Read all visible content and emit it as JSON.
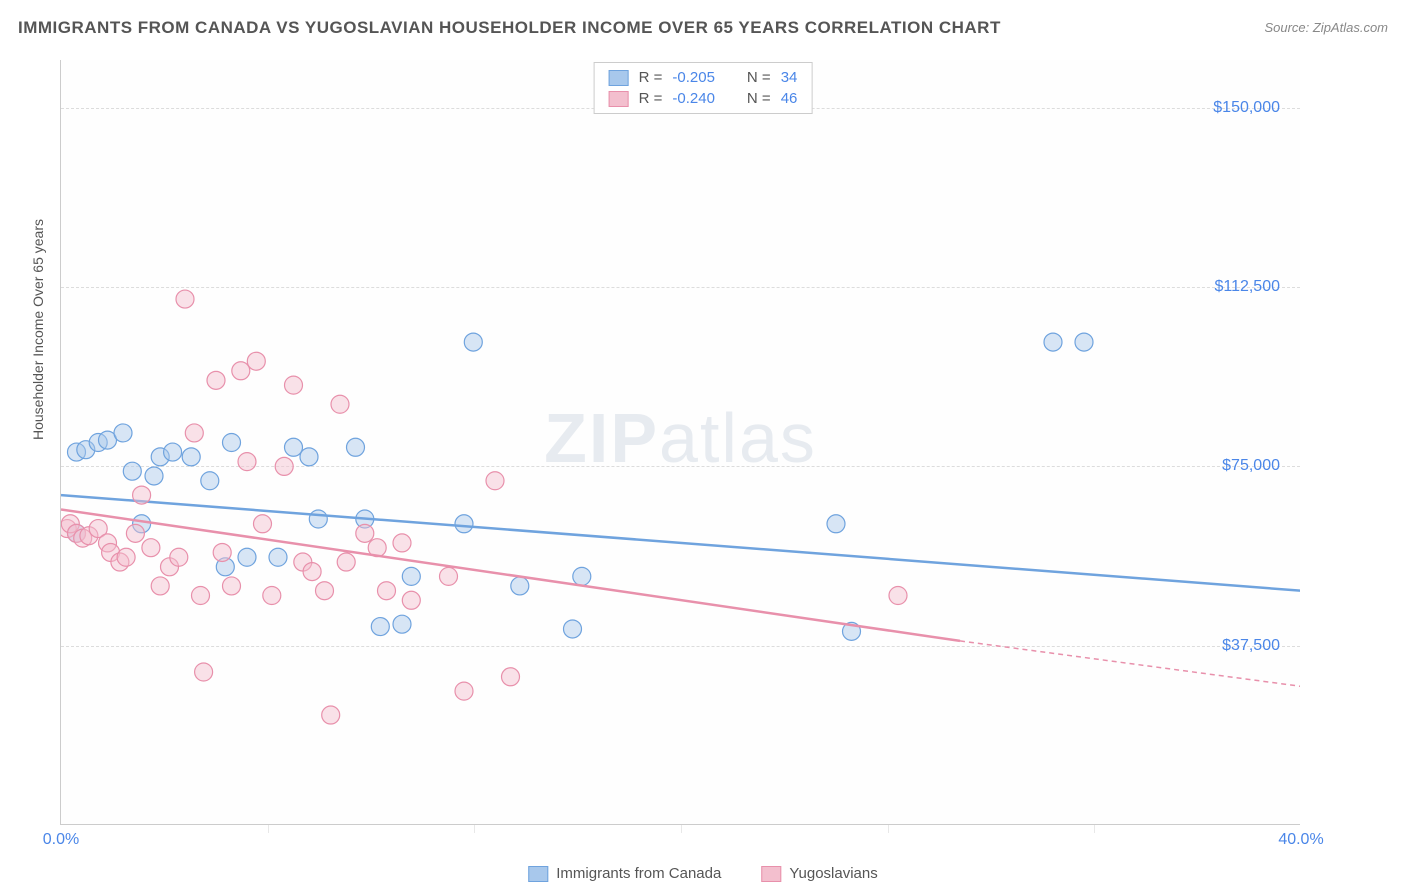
{
  "title": "IMMIGRANTS FROM CANADA VS YUGOSLAVIAN HOUSEHOLDER INCOME OVER 65 YEARS CORRELATION CHART",
  "source": "Source: ZipAtlas.com",
  "y_axis_label": "Householder Income Over 65 years",
  "watermark": "ZIPatlas",
  "chart": {
    "type": "scatter",
    "xlim": [
      0,
      40
    ],
    "ylim": [
      0,
      160000
    ],
    "x_ticks": [
      0,
      40
    ],
    "x_tick_labels": [
      "0.0%",
      "40.0%"
    ],
    "x_minor_ticks": [
      6.67,
      13.33,
      20,
      26.67,
      33.33
    ],
    "y_ticks": [
      37500,
      75000,
      112500,
      150000
    ],
    "y_tick_labels": [
      "$37,500",
      "$75,000",
      "$112,500",
      "$150,000"
    ],
    "background_color": "#ffffff",
    "grid_color": "#dcdcdc",
    "series": [
      {
        "name": "Immigrants from Canada",
        "color_fill": "#a8c8ec",
        "color_stroke": "#6fa3de",
        "r": -0.205,
        "n": 34,
        "points": [
          [
            0.5,
            61000
          ],
          [
            0.5,
            78000
          ],
          [
            0.8,
            78500
          ],
          [
            1.2,
            80000
          ],
          [
            1.5,
            80500
          ],
          [
            2.0,
            82000
          ],
          [
            2.3,
            74000
          ],
          [
            2.6,
            63000
          ],
          [
            3.0,
            73000
          ],
          [
            3.2,
            77000
          ],
          [
            3.6,
            78000
          ],
          [
            4.2,
            77000
          ],
          [
            4.8,
            72000
          ],
          [
            5.3,
            54000
          ],
          [
            5.5,
            80000
          ],
          [
            6.0,
            56000
          ],
          [
            7.0,
            56000
          ],
          [
            7.5,
            79000
          ],
          [
            8.0,
            77000
          ],
          [
            8.3,
            64000
          ],
          [
            9.5,
            79000
          ],
          [
            9.8,
            64000
          ],
          [
            10.3,
            41500
          ],
          [
            11.0,
            42000
          ],
          [
            11.3,
            52000
          ],
          [
            13.0,
            63000
          ],
          [
            13.3,
            101000
          ],
          [
            14.8,
            50000
          ],
          [
            16.5,
            41000
          ],
          [
            16.8,
            52000
          ],
          [
            25.0,
            63000
          ],
          [
            25.5,
            40500
          ],
          [
            32.0,
            101000
          ],
          [
            33.0,
            101000
          ]
        ],
        "trend": {
          "x1": 0,
          "y1": 69000,
          "x2": 40,
          "y2": 49000,
          "extrapolate_from": 40
        }
      },
      {
        "name": "Yugoslavians",
        "color_fill": "#f3bfce",
        "color_stroke": "#e890ab",
        "r": -0.24,
        "n": 46,
        "points": [
          [
            0.2,
            62000
          ],
          [
            0.3,
            63000
          ],
          [
            0.5,
            61000
          ],
          [
            0.7,
            60000
          ],
          [
            0.9,
            60500
          ],
          [
            1.2,
            62000
          ],
          [
            1.5,
            59000
          ],
          [
            1.6,
            57000
          ],
          [
            1.9,
            55000
          ],
          [
            2.1,
            56000
          ],
          [
            2.4,
            61000
          ],
          [
            2.6,
            69000
          ],
          [
            2.9,
            58000
          ],
          [
            3.2,
            50000
          ],
          [
            3.5,
            54000
          ],
          [
            3.8,
            56000
          ],
          [
            4.0,
            110000
          ],
          [
            4.3,
            82000
          ],
          [
            4.5,
            48000
          ],
          [
            4.6,
            32000
          ],
          [
            5.0,
            93000
          ],
          [
            5.2,
            57000
          ],
          [
            5.5,
            50000
          ],
          [
            5.8,
            95000
          ],
          [
            6.0,
            76000
          ],
          [
            6.3,
            97000
          ],
          [
            6.5,
            63000
          ],
          [
            6.8,
            48000
          ],
          [
            7.2,
            75000
          ],
          [
            7.5,
            92000
          ],
          [
            7.8,
            55000
          ],
          [
            8.1,
            53000
          ],
          [
            8.5,
            49000
          ],
          [
            8.7,
            23000
          ],
          [
            9.0,
            88000
          ],
          [
            9.2,
            55000
          ],
          [
            9.8,
            61000
          ],
          [
            10.2,
            58000
          ],
          [
            10.5,
            49000
          ],
          [
            11.0,
            59000
          ],
          [
            11.3,
            47000
          ],
          [
            12.5,
            52000
          ],
          [
            13.0,
            28000
          ],
          [
            14.0,
            72000
          ],
          [
            14.5,
            31000
          ],
          [
            27.0,
            48000
          ]
        ],
        "trend": {
          "x1": 0,
          "y1": 66000,
          "x2": 29,
          "y2": 38500,
          "extrapolate_to": 40,
          "extrapolate_y": 29000
        }
      }
    ]
  },
  "legend_top": {
    "r_label": "R =",
    "n_label": "N ="
  },
  "legend_bottom": [
    {
      "label": "Immigrants from Canada",
      "color_fill": "#a8c8ec",
      "color_stroke": "#6fa3de"
    },
    {
      "label": "Yugoslavians",
      "color_fill": "#f3bfce",
      "color_stroke": "#e890ab"
    }
  ]
}
